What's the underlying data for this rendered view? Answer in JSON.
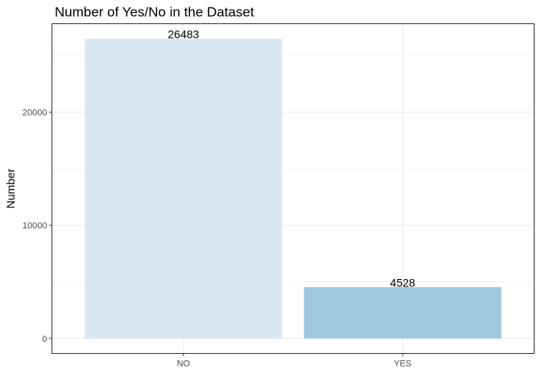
{
  "chart_data": {
    "type": "bar",
    "title": "Number of Yes/No in the Dataset",
    "xlabel": "",
    "ylabel": "Number",
    "categories": [
      "NO",
      "YES"
    ],
    "values": [
      26483,
      4528
    ],
    "data_labels": [
      "26483",
      "4528"
    ],
    "y_ticks": [
      0,
      10000,
      20000
    ],
    "y_tick_labels": [
      "0",
      "10000",
      "20000"
    ],
    "ylim": [
      -1325,
      27808
    ],
    "grid": true,
    "legend": "none",
    "colors": {
      "NO": "#dae8f5",
      "YES": "#9ec8df",
      "grid_major": "#ebebeb",
      "grid_minor": "#f3f3f3",
      "panel_border": "#333333"
    }
  }
}
